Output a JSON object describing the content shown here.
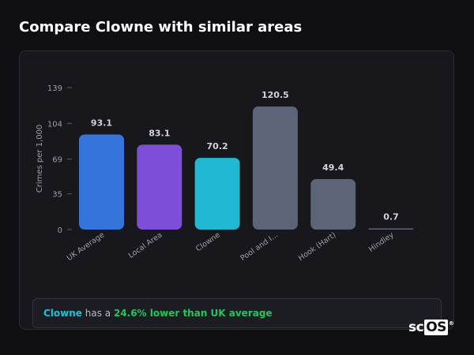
{
  "page": {
    "title": "Compare Clowne with similar areas"
  },
  "summary": {
    "area": "Clowne",
    "text_a": " has a ",
    "highlight": "24.6% lower than UK average"
  },
  "brand": {
    "name_a": "sc",
    "name_b": "OS",
    "reg": "®"
  },
  "chart_data": {
    "type": "bar",
    "title": "",
    "xlabel": "",
    "ylabel": "Crimes per 1,000",
    "categories": [
      "UK Average",
      "Local Area",
      "Clowne",
      "Pool and I...",
      "Hook (Hart)",
      "Hindley"
    ],
    "values": [
      93.1,
      83.1,
      70.2,
      120.5,
      49.4,
      0.7
    ],
    "value_labels": [
      "93.1",
      "83.1",
      "70.2",
      "120.5",
      "49.4",
      "0.7"
    ],
    "colors": [
      "#3575db",
      "#7c4fd6",
      "#21b8d1",
      "#5b6577",
      "#5b6577",
      "#5b6577"
    ],
    "yticks": [
      0,
      35,
      69,
      104,
      139
    ],
    "ylim": [
      0,
      139
    ],
    "grid": false,
    "legend": "none"
  }
}
